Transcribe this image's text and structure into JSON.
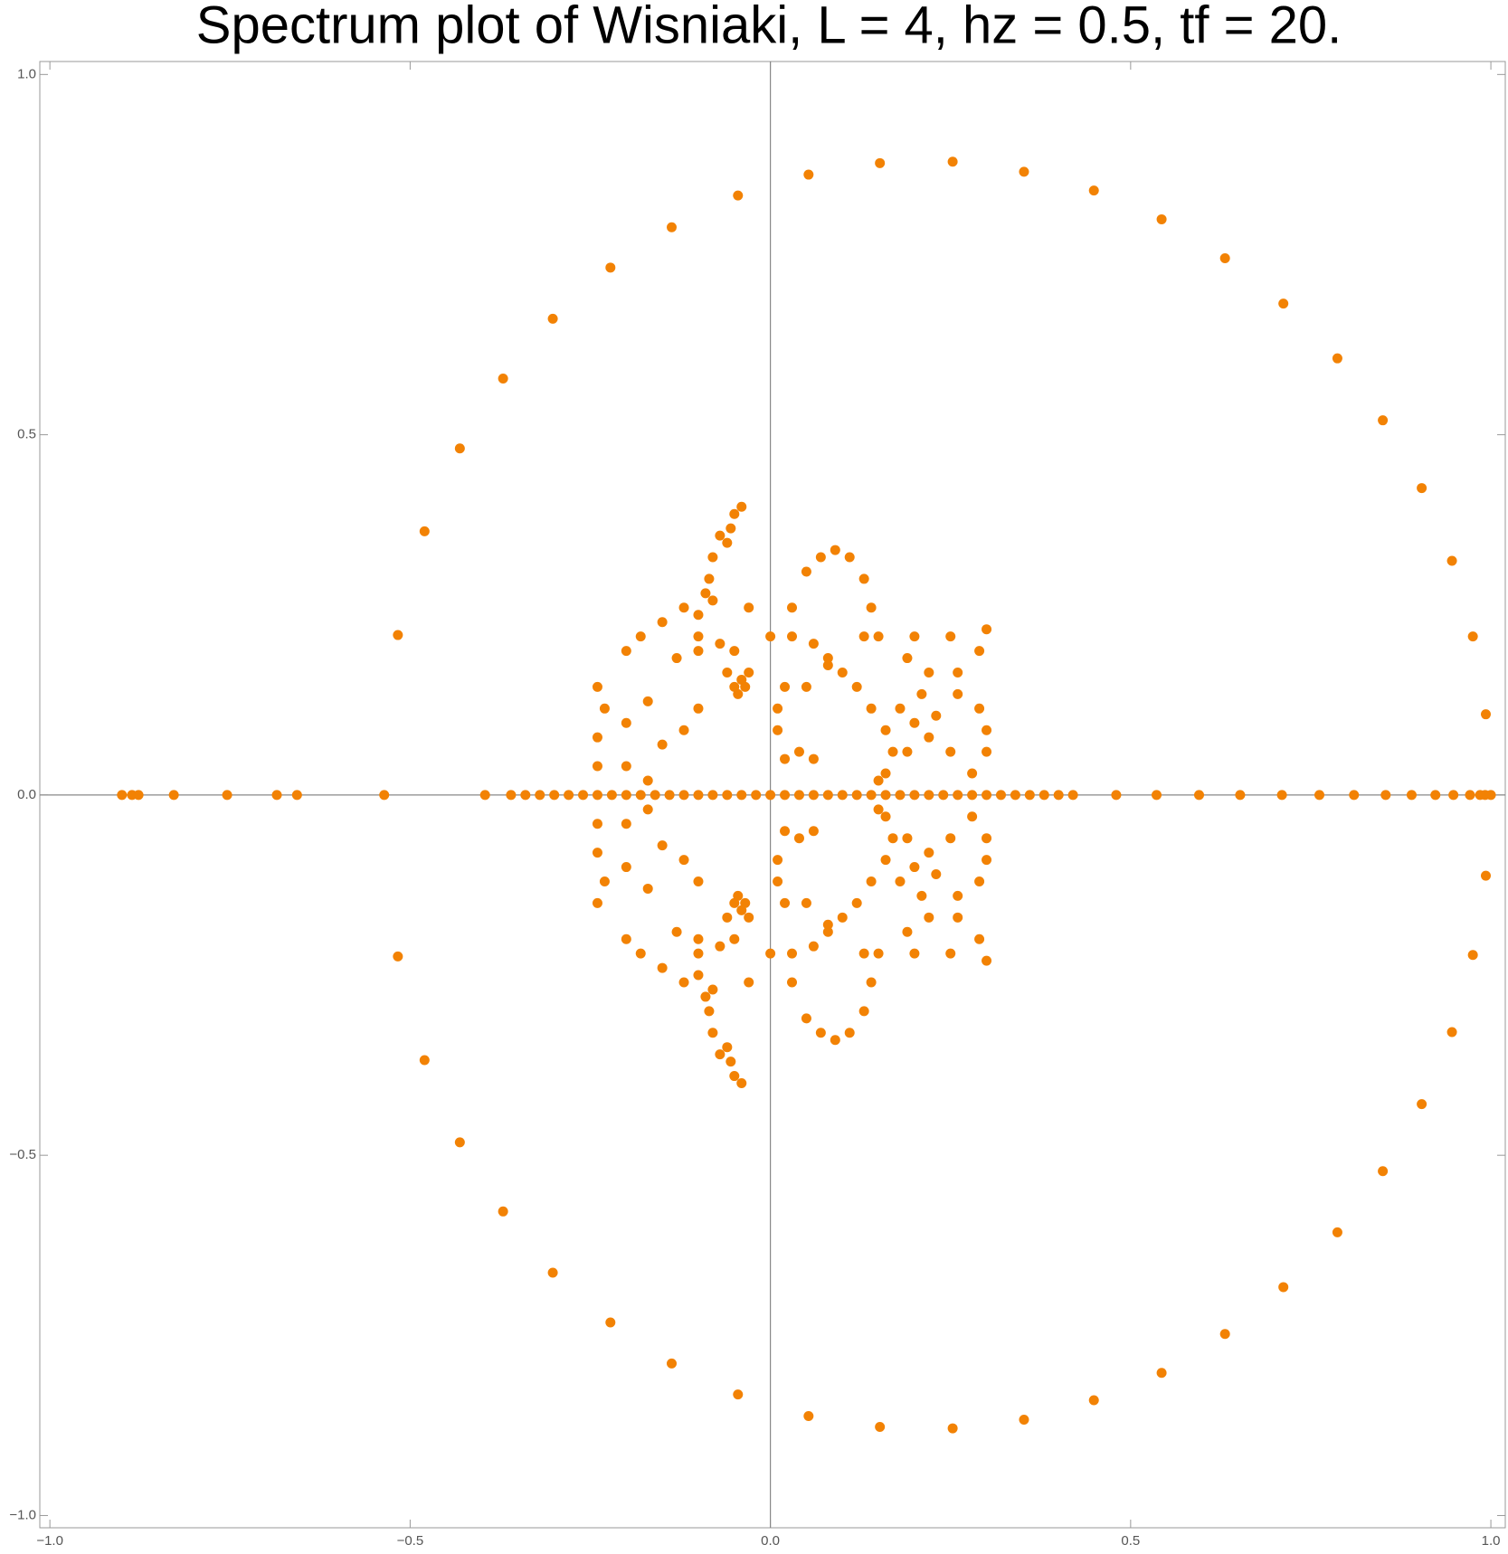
{
  "chart_data": {
    "type": "scatter",
    "title": "Spectrum plot of Wisniaki, L = 4, hz = 0.5, tf = 20.",
    "color": "#f28204",
    "xlim": [
      -1.014,
      1.02
    ],
    "ylim": [
      -1.017,
      1.018
    ],
    "xticks": [
      {
        "value": -1,
        "label": "−1.0"
      },
      {
        "value": -0.5,
        "label": "−0.5"
      },
      {
        "value": 0,
        "label": "0.0"
      },
      {
        "value": 0.5,
        "label": "0.5"
      },
      {
        "value": 1,
        "label": "1.0"
      }
    ],
    "yticks": [
      {
        "value": -1,
        "label": "−1.0"
      },
      {
        "value": -0.5,
        "label": "−0.5"
      },
      {
        "value": 0,
        "label": "0.0"
      },
      {
        "value": 0.5,
        "label": "0.5"
      },
      {
        "value": 1,
        "label": "1.0"
      }
    ],
    "x": [
      -0.517,
      -0.48,
      -0.431,
      -0.371,
      -0.302,
      -0.222,
      -0.137,
      -0.045,
      0.053,
      0.152,
      0.253,
      0.352,
      0.449,
      0.543,
      0.631,
      0.712,
      0.787,
      0.85,
      0.904,
      0.946,
      0.975,
      0.993,
      -0.517,
      -0.48,
      -0.431,
      -0.371,
      -0.302,
      -0.222,
      -0.137,
      -0.045,
      0.053,
      0.152,
      0.253,
      0.352,
      0.449,
      0.543,
      0.631,
      0.712,
      0.787,
      0.85,
      0.904,
      0.946,
      0.975,
      0.993,
      -0.9,
      -0.886,
      -0.877,
      -0.828,
      -0.754,
      -0.685,
      -0.657,
      -0.536,
      -0.396,
      0.48,
      0.536,
      0.595,
      0.652,
      0.71,
      0.762,
      0.81,
      0.854,
      0.89,
      0.923,
      0.948,
      0.971,
      0.985,
      0.992,
      1.0,
      -0.36,
      -0.34,
      -0.32,
      -0.3,
      -0.28,
      -0.26,
      -0.24,
      -0.22,
      -0.2,
      -0.18,
      -0.16,
      -0.14,
      -0.12,
      -0.1,
      -0.08,
      -0.06,
      -0.04,
      -0.02,
      0,
      0.02,
      0.04,
      0.06,
      0.08,
      0.1,
      0.12,
      0.14,
      0.16,
      0.18,
      0.2,
      0.22,
      0.24,
      0.26,
      0.28,
      0.3,
      0.32,
      0.34,
      0.36,
      0.38,
      0.4,
      0.42,
      -0.04,
      -0.05,
      -0.055,
      -0.06,
      -0.07,
      -0.08,
      -0.085,
      -0.09,
      -0.1,
      -0.1,
      -0.05,
      -0.04,
      -0.03,
      -0.045,
      -0.06,
      -0.035,
      -0.24,
      -0.23,
      -0.24,
      -0.24,
      -0.2,
      -0.18,
      -0.15,
      -0.12,
      -0.08,
      -0.03,
      -0.2,
      -0.17,
      -0.15,
      -0.12,
      -0.1,
      -0.13,
      -0.1,
      -0.07,
      -0.05,
      -0.2,
      -0.17,
      0.0,
      0.03,
      0.06,
      0.08,
      0.1,
      0.12,
      0.14,
      0.16,
      0.17,
      0.16,
      0.15,
      0.02,
      0.04,
      0.06,
      0.02,
      0.01,
      0.01,
      0.05,
      0.08,
      0.03,
      0.05,
      0.07,
      0.09,
      0.11,
      0.13,
      0.14,
      0.13,
      0.2,
      0.25,
      0.3,
      0.29,
      0.26,
      0.22,
      0.19,
      0.21,
      0.26,
      0.29,
      0.3,
      0.3,
      0.28,
      0.25,
      0.22,
      0.2,
      0.18,
      0.19,
      0.23,
      0.15,
      -0.04,
      -0.05,
      -0.055,
      -0.06,
      -0.07,
      -0.08,
      -0.085,
      -0.09,
      -0.1,
      -0.1,
      -0.05,
      -0.04,
      -0.03,
      -0.045,
      -0.06,
      -0.035,
      -0.24,
      -0.23,
      -0.24,
      -0.24,
      -0.2,
      -0.18,
      -0.15,
      -0.12,
      -0.08,
      -0.03,
      -0.2,
      -0.17,
      -0.15,
      -0.12,
      -0.1,
      -0.13,
      -0.1,
      -0.07,
      -0.05,
      -0.2,
      -0.17,
      0.0,
      0.03,
      0.06,
      0.08,
      0.1,
      0.12,
      0.14,
      0.16,
      0.17,
      0.16,
      0.15,
      0.02,
      0.04,
      0.06,
      0.02,
      0.01,
      0.01,
      0.05,
      0.08,
      0.03,
      0.05,
      0.07,
      0.09,
      0.11,
      0.13,
      0.14,
      0.13,
      0.2,
      0.25,
      0.3,
      0.29,
      0.26,
      0.22,
      0.19,
      0.21,
      0.26,
      0.29,
      0.3,
      0.3,
      0.28,
      0.25,
      0.22,
      0.2,
      0.18,
      0.19,
      0.23,
      0.15
    ],
    "y": [
      0.222,
      0.366,
      0.481,
      0.578,
      0.661,
      0.732,
      0.788,
      0.832,
      0.861,
      0.877,
      0.879,
      0.865,
      0.839,
      0.799,
      0.745,
      0.682,
      0.606,
      0.52,
      0.426,
      0.325,
      0.22,
      0.112,
      -0.224,
      -0.368,
      -0.482,
      -0.578,
      -0.663,
      -0.732,
      -0.789,
      -0.832,
      -0.862,
      -0.877,
      -0.879,
      -0.867,
      -0.84,
      -0.802,
      -0.748,
      -0.683,
      -0.607,
      -0.522,
      -0.429,
      -0.329,
      -0.222,
      -0.112,
      0,
      0,
      0,
      0,
      0,
      0,
      0,
      0,
      0,
      0,
      0,
      0,
      0,
      0,
      0,
      0,
      0,
      0,
      0,
      0,
      0,
      0,
      0,
      0,
      0,
      0,
      0,
      0,
      0,
      0,
      0,
      0,
      0,
      0,
      0,
      0,
      0,
      0,
      0,
      0,
      0,
      0,
      0,
      0,
      0,
      0,
      0,
      0,
      0,
      0,
      0,
      0,
      0,
      0,
      0,
      0,
      0,
      0,
      0,
      0,
      0,
      0,
      0,
      0,
      0.4,
      0.39,
      0.37,
      0.35,
      0.36,
      0.33,
      0.3,
      0.28,
      0.25,
      0.22,
      0.15,
      0.16,
      0.17,
      0.14,
      0.17,
      0.15,
      0.15,
      0.12,
      0.08,
      0.04,
      0.2,
      0.22,
      0.24,
      0.26,
      0.27,
      0.26,
      0.1,
      0.13,
      0.07,
      0.09,
      0.12,
      0.19,
      0.2,
      0.21,
      0.2,
      0.04,
      0.02,
      0.22,
      0.22,
      0.21,
      0.19,
      0.17,
      0.15,
      0.12,
      0.09,
      0.06,
      0.03,
      0.02,
      0.05,
      0.06,
      0.05,
      0.15,
      0.12,
      0.09,
      0.15,
      0.18,
      0.26,
      0.31,
      0.33,
      0.34,
      0.33,
      0.3,
      0.26,
      0.22,
      0.22,
      0.22,
      0.23,
      0.2,
      0.17,
      0.17,
      0.19,
      0.14,
      0.14,
      0.12,
      0.09,
      0.06,
      0.03,
      0.06,
      0.08,
      0.1,
      0.12,
      0.06,
      0.11,
      0.22,
      -0.4,
      -0.39,
      -0.37,
      -0.35,
      -0.36,
      -0.33,
      -0.3,
      -0.28,
      -0.25,
      -0.22,
      -0.15,
      -0.16,
      -0.17,
      -0.14,
      -0.17,
      -0.15,
      -0.15,
      -0.12,
      -0.08,
      -0.04,
      -0.2,
      -0.22,
      -0.24,
      -0.26,
      -0.27,
      -0.26,
      -0.1,
      -0.13,
      -0.07,
      -0.09,
      -0.12,
      -0.19,
      -0.2,
      -0.21,
      -0.2,
      -0.04,
      -0.02,
      -0.22,
      -0.22,
      -0.21,
      -0.19,
      -0.17,
      -0.15,
      -0.12,
      -0.09,
      -0.06,
      -0.03,
      -0.02,
      -0.05,
      -0.06,
      -0.05,
      -0.15,
      -0.12,
      -0.09,
      -0.15,
      -0.18,
      -0.26,
      -0.31,
      -0.33,
      -0.34,
      -0.33,
      -0.3,
      -0.26,
      -0.22,
      -0.22,
      -0.22,
      -0.23,
      -0.2,
      -0.17,
      -0.17,
      -0.19,
      -0.14,
      -0.14,
      -0.12,
      -0.09,
      -0.06,
      -0.03,
      -0.06,
      -0.08,
      -0.1,
      -0.12,
      -0.06,
      -0.11,
      -0.22
    ]
  }
}
